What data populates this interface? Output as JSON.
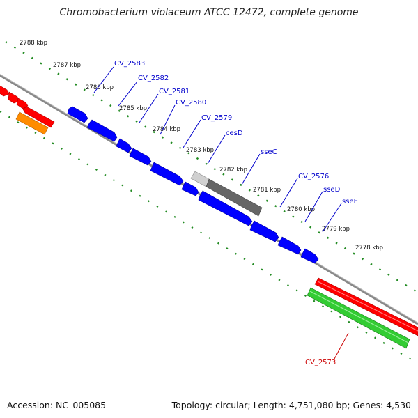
{
  "title": "Chromobacterium violaceum ATCC 12472, complete genome",
  "footer": {
    "accession": "Accession: NC_005085",
    "summary": "Topology: circular; Length: 4,751,080 bp; Genes: 4,530"
  },
  "kbp_labels": [
    "2788 kbp",
    "2787 kbp",
    "2786 kbp",
    "2785 kbp",
    "2784 kbp",
    "2783 kbp",
    "2782 kbp",
    "2781 kbp",
    "2780 kbp",
    "2779 kbp",
    "2778 kbp"
  ],
  "gene_labels": [
    "CV_2583",
    "CV_2582",
    "CV_2581",
    "CV_2580",
    "CV_2579",
    "cesD",
    "sseC",
    "CV_2576",
    "sseD",
    "sseE",
    "CV_2573"
  ],
  "colors": {
    "forward_cds": "#0000ff",
    "reverse_cds": "#ff0000",
    "rrna_or_other": "#ff8c00",
    "pseudo": "#666666",
    "highlight_green": "#33cc33",
    "backbone": "#888888",
    "tick": "#228b22",
    "blue_label": "#0000cc",
    "red_label": "#cc0000"
  }
}
